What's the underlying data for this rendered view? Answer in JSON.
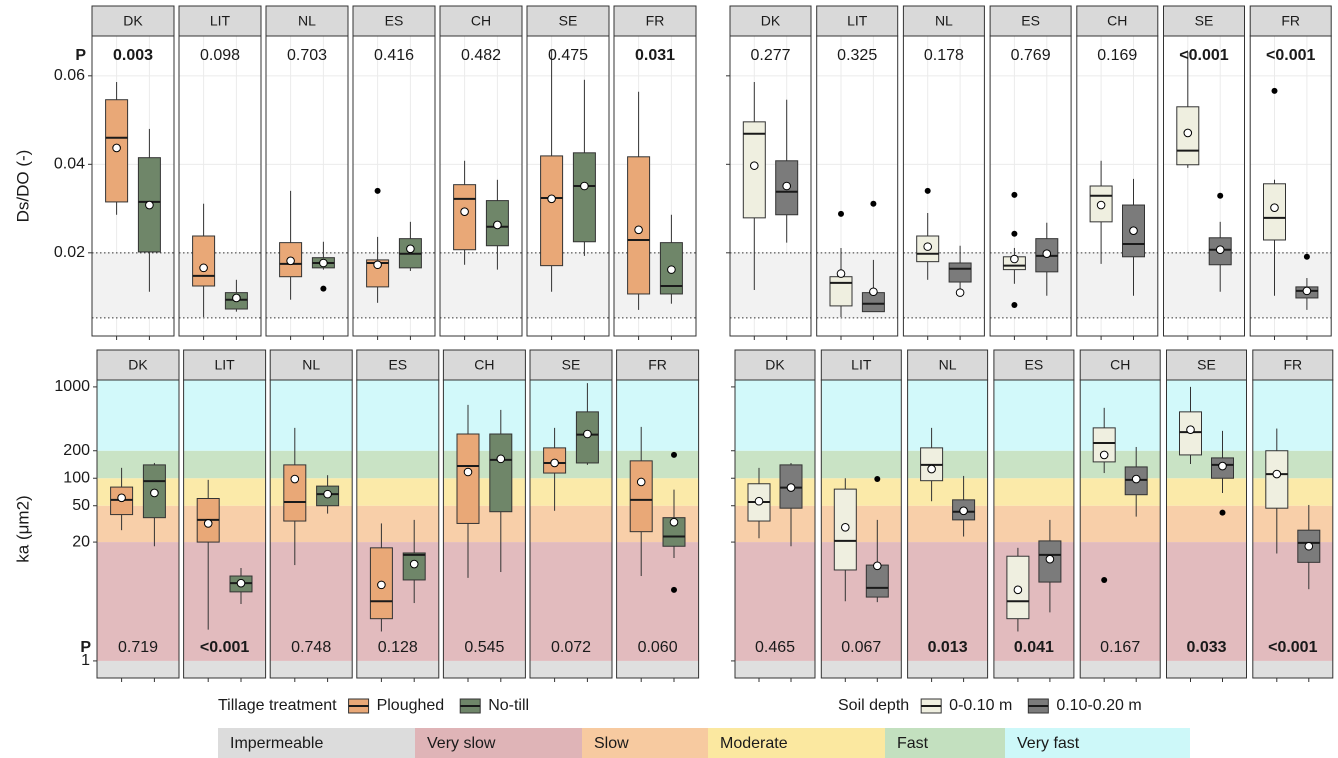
{
  "permeability_classes": {
    "names": [
      "Impermeable",
      "Very slow",
      "Slow",
      "Moderate",
      "Fast",
      "Very fast"
    ],
    "colors": [
      "#dcdcdc",
      "#dfb4b7",
      "#f7caa0",
      "#fbe8a0",
      "#c3e0bf",
      "#cdf8f9"
    ],
    "edges": [
      1,
      20,
      50,
      100,
      200
    ]
  },
  "chart_data": [
    {
      "type": "box",
      "ylabel": "Ds/DO (-)",
      "ylim": [
        0.0012,
        0.069
      ],
      "yticks": [
        0.02,
        0.04,
        0.06
      ],
      "ytick_labels": true,
      "grid": true,
      "reference_lines": [
        0.0053,
        0.02
      ],
      "p_label": "P",
      "p_position": "top",
      "legend_title": "Tillage treatment",
      "series": [
        {
          "name": "Ploughed",
          "color": "#e9a877"
        },
        {
          "name": "No-till",
          "color": "#6f8669"
        }
      ],
      "facets": [
        {
          "name": "DK",
          "p": "0.003",
          "p_bold": true,
          "boxes": [
            {
              "min": 0.0286,
              "q1": 0.0315,
              "median": 0.046,
              "q3": 0.0546,
              "max": 0.0586,
              "mean": 0.0437,
              "outliers": []
            },
            {
              "min": 0.0112,
              "q1": 0.0202,
              "median": 0.0315,
              "q3": 0.0415,
              "max": 0.048,
              "mean": 0.0308,
              "outliers": []
            }
          ]
        },
        {
          "name": "LIT",
          "p": "0.098",
          "p_bold": false,
          "boxes": [
            {
              "min": 0.0055,
              "q1": 0.0125,
              "median": 0.0148,
              "q3": 0.0238,
              "max": 0.0311,
              "mean": 0.0166,
              "outliers": []
            },
            {
              "min": 0.0067,
              "q1": 0.0073,
              "median": 0.0094,
              "q3": 0.011,
              "max": 0.0139,
              "mean": 0.0098,
              "outliers": []
            }
          ]
        },
        {
          "name": "NL",
          "p": "0.703",
          "p_bold": false,
          "boxes": [
            {
              "min": 0.0094,
              "q1": 0.0146,
              "median": 0.0175,
              "q3": 0.0223,
              "max": 0.034,
              "mean": 0.0182,
              "outliers": []
            },
            {
              "min": 0.0162,
              "q1": 0.0166,
              "median": 0.0177,
              "q3": 0.0189,
              "max": 0.0225,
              "mean": 0.0177,
              "outliers": [
                0.0119
              ]
            }
          ]
        },
        {
          "name": "ES",
          "p": "0.416",
          "p_bold": false,
          "boxes": [
            {
              "min": 0.0087,
              "q1": 0.0123,
              "median": 0.0177,
              "q3": 0.0184,
              "max": 0.0236,
              "mean": 0.0173,
              "outliers": [
                0.034
              ]
            },
            {
              "min": 0.0159,
              "q1": 0.0166,
              "median": 0.0198,
              "q3": 0.0232,
              "max": 0.027,
              "mean": 0.0209,
              "outliers": []
            }
          ]
        },
        {
          "name": "CH",
          "p": "0.482",
          "p_bold": false,
          "boxes": [
            {
              "min": 0.0173,
              "q1": 0.0207,
              "median": 0.0322,
              "q3": 0.0354,
              "max": 0.0408,
              "mean": 0.0293,
              "outliers": []
            },
            {
              "min": 0.0162,
              "q1": 0.0216,
              "median": 0.0259,
              "q3": 0.0318,
              "max": 0.0365,
              "mean": 0.0263,
              "outliers": []
            }
          ]
        },
        {
          "name": "SE",
          "p": "0.475",
          "p_bold": false,
          "boxes": [
            {
              "min": 0.0112,
              "q1": 0.0171,
              "median": 0.0324,
              "q3": 0.0419,
              "max": 0.0659,
              "mean": 0.0322,
              "outliers": []
            },
            {
              "min": 0.0193,
              "q1": 0.0225,
              "median": 0.0351,
              "q3": 0.0426,
              "max": 0.0591,
              "mean": 0.0351,
              "outliers": []
            }
          ]
        },
        {
          "name": "FR",
          "p": "0.031",
          "p_bold": true,
          "boxes": [
            {
              "min": 0.0071,
              "q1": 0.0107,
              "median": 0.0229,
              "q3": 0.0417,
              "max": 0.0564,
              "mean": 0.0252,
              "outliers": []
            },
            {
              "min": 0.0085,
              "q1": 0.0107,
              "median": 0.0125,
              "q3": 0.0223,
              "max": 0.0286,
              "mean": 0.0162,
              "outliers": []
            }
          ]
        }
      ]
    },
    {
      "type": "box",
      "ylim": [
        0.0012,
        0.069
      ],
      "yticks": [
        0.02,
        0.04,
        0.06
      ],
      "ytick_labels": false,
      "grid": true,
      "reference_lines": [
        0.0053,
        0.02
      ],
      "p_position": "top",
      "legend_title": "Soil depth",
      "series": [
        {
          "name": "0-0.10 m",
          "color": "#efefe0"
        },
        {
          "name": "0.10-0.20 m",
          "color": "#7b7b7b"
        }
      ],
      "facets": [
        {
          "name": "DK",
          "p": "0.277",
          "p_bold": false,
          "boxes": [
            {
              "min": 0.0116,
              "q1": 0.0279,
              "median": 0.0469,
              "q3": 0.0496,
              "max": 0.0586,
              "mean": 0.0397,
              "outliers": []
            },
            {
              "min": 0.0223,
              "q1": 0.0286,
              "median": 0.0338,
              "q3": 0.0408,
              "max": 0.0546,
              "mean": 0.0351,
              "outliers": []
            }
          ]
        },
        {
          "name": "LIT",
          "p": "0.325",
          "p_bold": false,
          "boxes": [
            {
              "min": 0.0055,
              "q1": 0.008,
              "median": 0.0132,
              "q3": 0.0146,
              "max": 0.0211,
              "mean": 0.0153,
              "outliers": [
                0.0288
              ]
            },
            {
              "min": 0.0067,
              "q1": 0.0067,
              "median": 0.0085,
              "q3": 0.011,
              "max": 0.0184,
              "mean": 0.0112,
              "outliers": [
                0.0311
              ]
            }
          ]
        },
        {
          "name": "NL",
          "p": "0.178",
          "p_bold": false,
          "boxes": [
            {
              "min": 0.0139,
              "q1": 0.018,
              "median": 0.0198,
              "q3": 0.0238,
              "max": 0.029,
              "mean": 0.0214,
              "outliers": [
                0.034
              ]
            },
            {
              "min": 0.0103,
              "q1": 0.0134,
              "median": 0.0164,
              "q3": 0.0177,
              "max": 0.0216,
              "mean": 0.011,
              "outliers": []
            }
          ]
        },
        {
          "name": "ES",
          "p": "0.769",
          "p_bold": false,
          "boxes": [
            {
              "min": 0.013,
              "q1": 0.0162,
              "median": 0.0171,
              "q3": 0.0191,
              "max": 0.0211,
              "mean": 0.0186,
              "outliers": [
                0.0331,
                0.0243,
                0.0082
              ]
            },
            {
              "min": 0.0103,
              "q1": 0.0157,
              "median": 0.0193,
              "q3": 0.0232,
              "max": 0.0268,
              "mean": 0.0198,
              "outliers": []
            }
          ]
        },
        {
          "name": "CH",
          "p": "0.169",
          "p_bold": false,
          "boxes": [
            {
              "min": 0.0175,
              "q1": 0.027,
              "median": 0.0329,
              "q3": 0.0351,
              "max": 0.0408,
              "mean": 0.0308,
              "outliers": []
            },
            {
              "min": 0.0103,
              "q1": 0.0191,
              "median": 0.022,
              "q3": 0.0308,
              "max": 0.0367,
              "mean": 0.025,
              "outliers": []
            }
          ]
        },
        {
          "name": "SE",
          "p": "<0.001",
          "p_bold": true,
          "boxes": [
            {
              "min": 0.0392,
              "q1": 0.0399,
              "median": 0.0431,
              "q3": 0.053,
              "max": 0.0654,
              "mean": 0.0471,
              "outliers": []
            },
            {
              "min": 0.0112,
              "q1": 0.0173,
              "median": 0.0207,
              "q3": 0.0234,
              "max": 0.027,
              "mean": 0.0207,
              "outliers": [
                0.0329
              ]
            }
          ]
        },
        {
          "name": "FR",
          "p": "<0.001",
          "p_bold": true,
          "boxes": [
            {
              "min": 0.0103,
              "q1": 0.0229,
              "median": 0.0279,
              "q3": 0.0356,
              "max": 0.0365,
              "mean": 0.0302,
              "outliers": [
                0.0566
              ]
            },
            {
              "min": 0.0071,
              "q1": 0.0098,
              "median": 0.0114,
              "q3": 0.0123,
              "max": 0.0143,
              "mean": 0.0114,
              "outliers": [
                0.0191
              ]
            }
          ]
        }
      ]
    },
    {
      "type": "box",
      "ylabel": "ka (μm2)",
      "log_scale": true,
      "ylim": [
        0.65,
        1190
      ],
      "yticks": [
        1,
        20,
        50,
        100,
        200,
        1000
      ],
      "ytick_labels": true,
      "bands": true,
      "p_label": "P",
      "p_position": "bottom",
      "facets": [
        {
          "name": "DK",
          "p": "0.719",
          "p_bold": false,
          "boxes": [
            {
              "min": 27,
              "q1": 40,
              "median": 58,
              "q3": 80,
              "max": 130,
              "mean": 61,
              "outliers": []
            },
            {
              "min": 18,
              "q1": 37,
              "median": 93,
              "q3": 140,
              "max": 147,
              "mean": 69,
              "outliers": []
            }
          ]
        },
        {
          "name": "LIT",
          "p": "<0.001",
          "p_bold": true,
          "boxes": [
            {
              "min": 2.2,
              "q1": 20,
              "median": 35,
              "q3": 60,
              "max": 96,
              "mean": 32,
              "outliers": []
            },
            {
              "min": 4.2,
              "q1": 5.7,
              "median": 7.1,
              "q3": 8.5,
              "max": 10.4,
              "mean": 7.1,
              "outliers": []
            }
          ]
        },
        {
          "name": "NL",
          "p": "0.748",
          "p_bold": false,
          "boxes": [
            {
              "min": 11.2,
              "q1": 34,
              "median": 55,
              "q3": 140,
              "max": 356,
              "mean": 98,
              "outliers": []
            },
            {
              "min": 41,
              "q1": 50,
              "median": 67,
              "q3": 82,
              "max": 108,
              "mean": 67,
              "outliers": []
            }
          ]
        },
        {
          "name": "ES",
          "p": "0.128",
          "p_bold": false,
          "boxes": [
            {
              "min": 2.1,
              "q1": 2.9,
              "median": 4.5,
              "q3": 17.3,
              "max": 32,
              "mean": 6.8,
              "outliers": []
            },
            {
              "min": 4.3,
              "q1": 7.7,
              "median": 14.5,
              "q3": 15.2,
              "max": 35,
              "mean": 11.5,
              "outliers": []
            }
          ]
        },
        {
          "name": "CH",
          "p": "0.545",
          "p_bold": false,
          "boxes": [
            {
              "min": 8.1,
              "q1": 32,
              "median": 136,
              "q3": 305,
              "max": 635,
              "mean": 117,
              "outliers": []
            },
            {
              "min": 9.4,
              "q1": 43,
              "median": 159,
              "q3": 305,
              "max": 560,
              "mean": 163,
              "outliers": []
            }
          ]
        },
        {
          "name": "SE",
          "p": "0.072",
          "p_bold": false,
          "boxes": [
            {
              "min": 44,
              "q1": 114,
              "median": 147,
              "q3": 215,
              "max": 356,
              "mean": 147,
              "outliers": []
            },
            {
              "min": 140,
              "q1": 147,
              "median": 300,
              "q3": 533,
              "max": 1100,
              "mean": 305,
              "outliers": []
            }
          ]
        },
        {
          "name": "FR",
          "p": "0.060",
          "p_bold": false,
          "boxes": [
            {
              "min": 8.5,
              "q1": 26,
              "median": 58,
              "q3": 155,
              "max": 365,
              "mean": 91,
              "outliers": []
            },
            {
              "min": 13.4,
              "q1": 18,
              "median": 23,
              "q3": 37,
              "max": 75,
              "mean": 33,
              "outliers": [
                180,
                6
              ]
            }
          ]
        }
      ]
    },
    {
      "type": "box",
      "log_scale": true,
      "ylim": [
        0.65,
        1190
      ],
      "yticks": [
        1,
        20,
        50,
        100,
        200,
        1000
      ],
      "ytick_labels": false,
      "bands": true,
      "p_position": "bottom",
      "facets": [
        {
          "name": "DK",
          "p": "0.465",
          "p_bold": false,
          "boxes": [
            {
              "min": 22,
              "q1": 34,
              "median": 55,
              "q3": 87,
              "max": 130,
              "mean": 56,
              "outliers": []
            },
            {
              "min": 18,
              "q1": 47,
              "median": 79,
              "q3": 140,
              "max": 147,
              "mean": 79,
              "outliers": []
            }
          ]
        },
        {
          "name": "LIT",
          "p": "0.067",
          "p_bold": false,
          "boxes": [
            {
              "min": 4.5,
              "q1": 9.9,
              "median": 20.6,
              "q3": 76,
              "max": 100,
              "mean": 29,
              "outliers": []
            },
            {
              "min": 4.4,
              "q1": 5,
              "median": 6.3,
              "q3": 11.2,
              "max": 35,
              "mean": 11,
              "outliers": [
                98
              ]
            }
          ]
        },
        {
          "name": "NL",
          "p": "0.013",
          "p_bold": true,
          "boxes": [
            {
              "min": 56,
              "q1": 94,
              "median": 140,
              "q3": 215,
              "max": 356,
              "mean": 126,
              "outliers": []
            },
            {
              "min": 23,
              "q1": 35,
              "median": 43,
              "q3": 58,
              "max": 106,
              "mean": 44,
              "outliers": []
            }
          ]
        },
        {
          "name": "ES",
          "p": "0.041",
          "p_bold": true,
          "boxes": [
            {
              "min": 2.1,
              "q1": 2.9,
              "median": 4.5,
              "q3": 14,
              "max": 17.3,
              "mean": 6,
              "outliers": []
            },
            {
              "min": 3.4,
              "q1": 7.3,
              "median": 14.5,
              "q3": 20.6,
              "max": 35,
              "mean": 13,
              "outliers": []
            }
          ]
        },
        {
          "name": "CH",
          "p": "0.167",
          "p_bold": false,
          "boxes": [
            {
              "min": 114,
              "q1": 151,
              "median": 243,
              "q3": 356,
              "max": 590,
              "mean": 180,
              "outliers": [
                7.7
              ]
            },
            {
              "min": 38,
              "q1": 66,
              "median": 96,
              "q3": 133,
              "max": 220,
              "mean": 98,
              "outliers": []
            }
          ]
        },
        {
          "name": "SE",
          "p": "0.033",
          "p_bold": true,
          "boxes": [
            {
              "min": 143,
              "q1": 180,
              "median": 320,
              "q3": 533,
              "max": 1000,
              "mean": 340,
              "outliers": []
            },
            {
              "min": 69,
              "q1": 100,
              "median": 140,
              "q3": 167,
              "max": 330,
              "mean": 136,
              "outliers": [
                42
              ]
            }
          ]
        },
        {
          "name": "FR",
          "p": "<0.001",
          "p_bold": true,
          "boxes": [
            {
              "min": 15,
              "q1": 47,
              "median": 111,
              "q3": 200,
              "max": 350,
              "mean": 111,
              "outliers": []
            },
            {
              "min": 6.1,
              "q1": 12,
              "median": 19.6,
              "q3": 27,
              "max": 51,
              "mean": 18,
              "outliers": []
            }
          ]
        }
      ]
    }
  ]
}
